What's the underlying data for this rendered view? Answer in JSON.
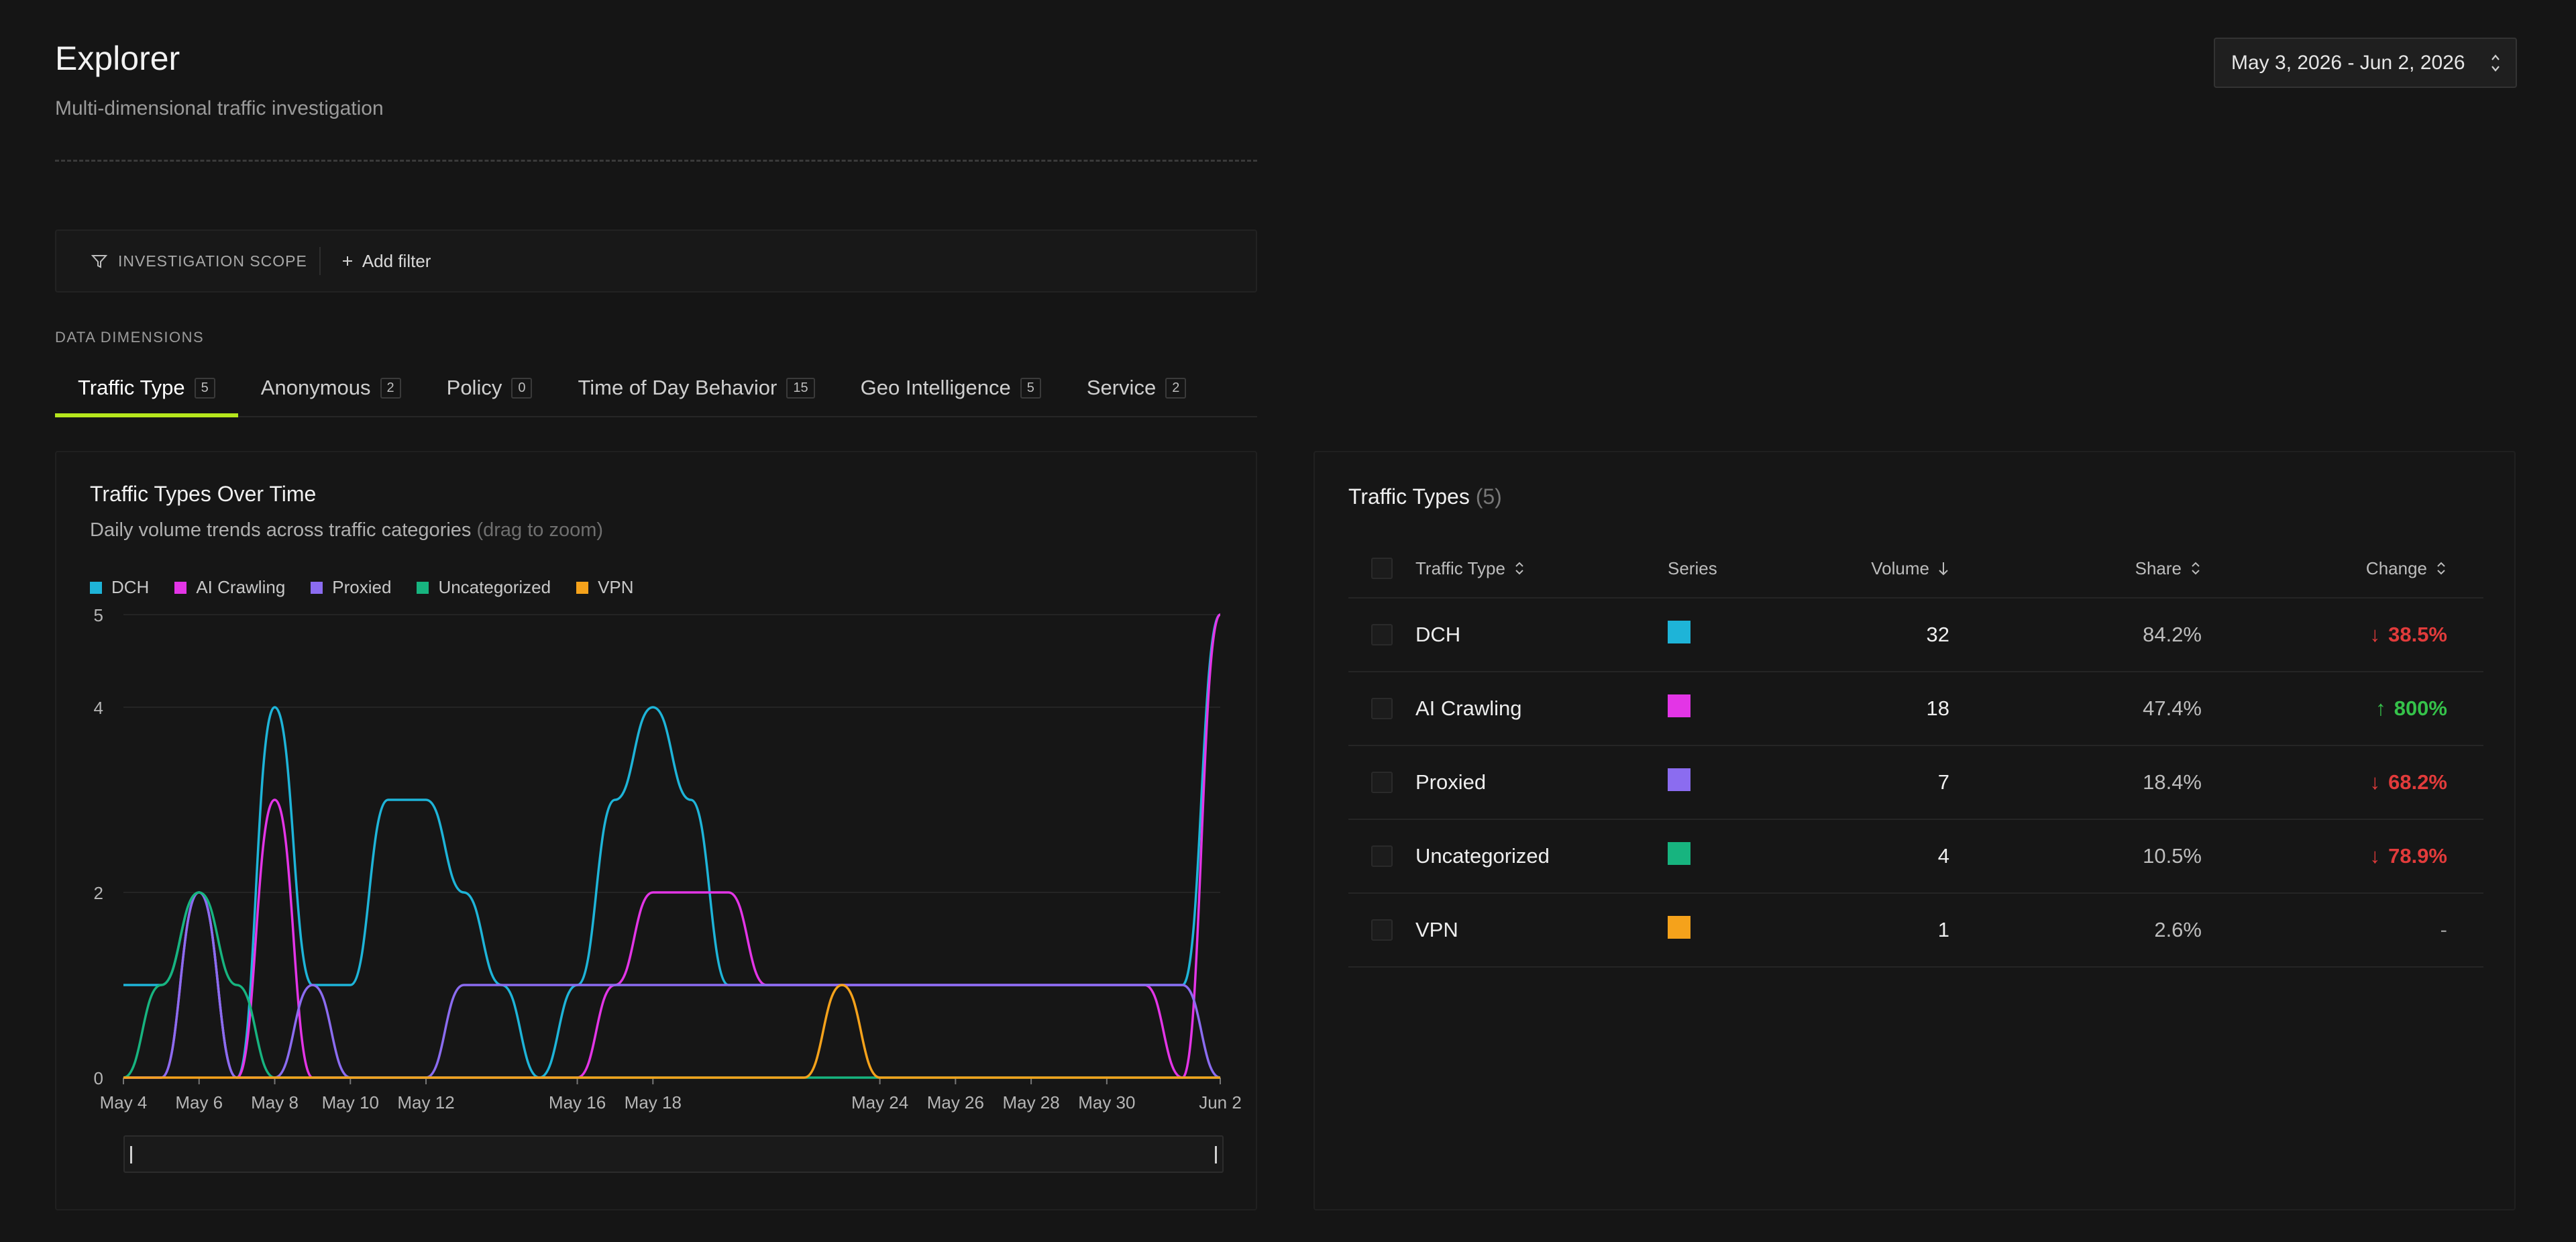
{
  "header": {
    "title": "Explorer",
    "subtitle": "Multi-dimensional traffic investigation",
    "date_range": "May 3, 2026 - Jun 2, 2026"
  },
  "filters": {
    "scope_label": "INVESTIGATION SCOPE",
    "add_label": "Add filter"
  },
  "dimensions": {
    "label": "DATA DIMENSIONS",
    "tabs": [
      {
        "label": "Traffic Type",
        "count": "5"
      },
      {
        "label": "Anonymous",
        "count": "2"
      },
      {
        "label": "Policy",
        "count": "0"
      },
      {
        "label": "Time of Day Behavior",
        "count": "15"
      },
      {
        "label": "Geo Intelligence",
        "count": "5"
      },
      {
        "label": "Service",
        "count": "2"
      }
    ]
  },
  "chart": {
    "title": "Traffic Types Over Time",
    "subtitle": "Daily volume trends across traffic categories",
    "hint": "(drag to zoom)"
  },
  "chart_data": {
    "type": "line",
    "title": "Traffic Types Over Time",
    "x": [
      "May 4",
      "May 5",
      "May 6",
      "May 7",
      "May 8",
      "May 9",
      "May 10",
      "May 11",
      "May 12",
      "May 13",
      "May 14",
      "May 15",
      "May 16",
      "May 17",
      "May 18",
      "May 19",
      "May 20",
      "May 21",
      "May 22",
      "May 23",
      "May 24",
      "May 25",
      "May 26",
      "May 27",
      "May 28",
      "May 29",
      "May 30",
      "May 31",
      "Jun 1",
      "Jun 2"
    ],
    "x_tick_labels": [
      "May 4",
      "May 6",
      "May 8",
      "May 10",
      "May 12",
      "May 16",
      "May 18",
      "May 24",
      "May 26",
      "May 28",
      "May 30",
      "Jun 2"
    ],
    "y_ticks": [
      0,
      2,
      4,
      5
    ],
    "ylim": [
      0,
      5
    ],
    "grid": true,
    "legend": "top-left",
    "series": [
      {
        "name": "DCH",
        "color": "#1eb4d8",
        "values": [
          1,
          1,
          2,
          0,
          4,
          1,
          1,
          3,
          3,
          2,
          1,
          0,
          1,
          3,
          4,
          3,
          1,
          1,
          1,
          1,
          1,
          1,
          1,
          1,
          1,
          1,
          1,
          1,
          1,
          5
        ]
      },
      {
        "name": "AI Crawling",
        "color": "#e335e6",
        "values": [
          0,
          0,
          2,
          0,
          3,
          0,
          0,
          0,
          0,
          0,
          0,
          0,
          0,
          1,
          2,
          2,
          2,
          1,
          1,
          1,
          1,
          1,
          1,
          1,
          1,
          1,
          1,
          1,
          0,
          5
        ]
      },
      {
        "name": "Proxied",
        "color": "#8b6cf0",
        "values": [
          0,
          0,
          2,
          0,
          0,
          1,
          0,
          0,
          0,
          1,
          1,
          1,
          1,
          1,
          1,
          1,
          1,
          1,
          1,
          1,
          1,
          1,
          1,
          1,
          1,
          1,
          1,
          1,
          1,
          0
        ]
      },
      {
        "name": "Uncategorized",
        "color": "#17b47f",
        "values": [
          0,
          1,
          2,
          1,
          0,
          0,
          0,
          0,
          0,
          0,
          0,
          0,
          0,
          0,
          0,
          0,
          0,
          0,
          0,
          0,
          0,
          0,
          0,
          0,
          0,
          0,
          0,
          0,
          0,
          0
        ]
      },
      {
        "name": "VPN",
        "color": "#f5a21b",
        "values": [
          0,
          0,
          0,
          0,
          0,
          0,
          0,
          0,
          0,
          0,
          0,
          0,
          0,
          0,
          0,
          0,
          0,
          0,
          0,
          1,
          0,
          0,
          0,
          0,
          0,
          0,
          0,
          0,
          0,
          0
        ]
      }
    ]
  },
  "table": {
    "title": "Traffic Types",
    "count": "(5)",
    "headers": {
      "type": "Traffic Type",
      "series": "Series",
      "volume": "Volume",
      "share": "Share",
      "change": "Change"
    },
    "rows": [
      {
        "type": "DCH",
        "color": "#1eb4d8",
        "volume": "32",
        "share": "84.2%",
        "change": "38.5%",
        "direction": "down"
      },
      {
        "type": "AI Crawling",
        "color": "#e335e6",
        "volume": "18",
        "share": "47.4%",
        "change": "800%",
        "direction": "up"
      },
      {
        "type": "Proxied",
        "color": "#8b6cf0",
        "volume": "7",
        "share": "18.4%",
        "change": "68.2%",
        "direction": "down"
      },
      {
        "type": "Uncategorized",
        "color": "#17b47f",
        "volume": "4",
        "share": "10.5%",
        "change": "78.9%",
        "direction": "down"
      },
      {
        "type": "VPN",
        "color": "#f5a21b",
        "volume": "1",
        "share": "2.6%",
        "change": "-",
        "direction": "none"
      }
    ]
  }
}
